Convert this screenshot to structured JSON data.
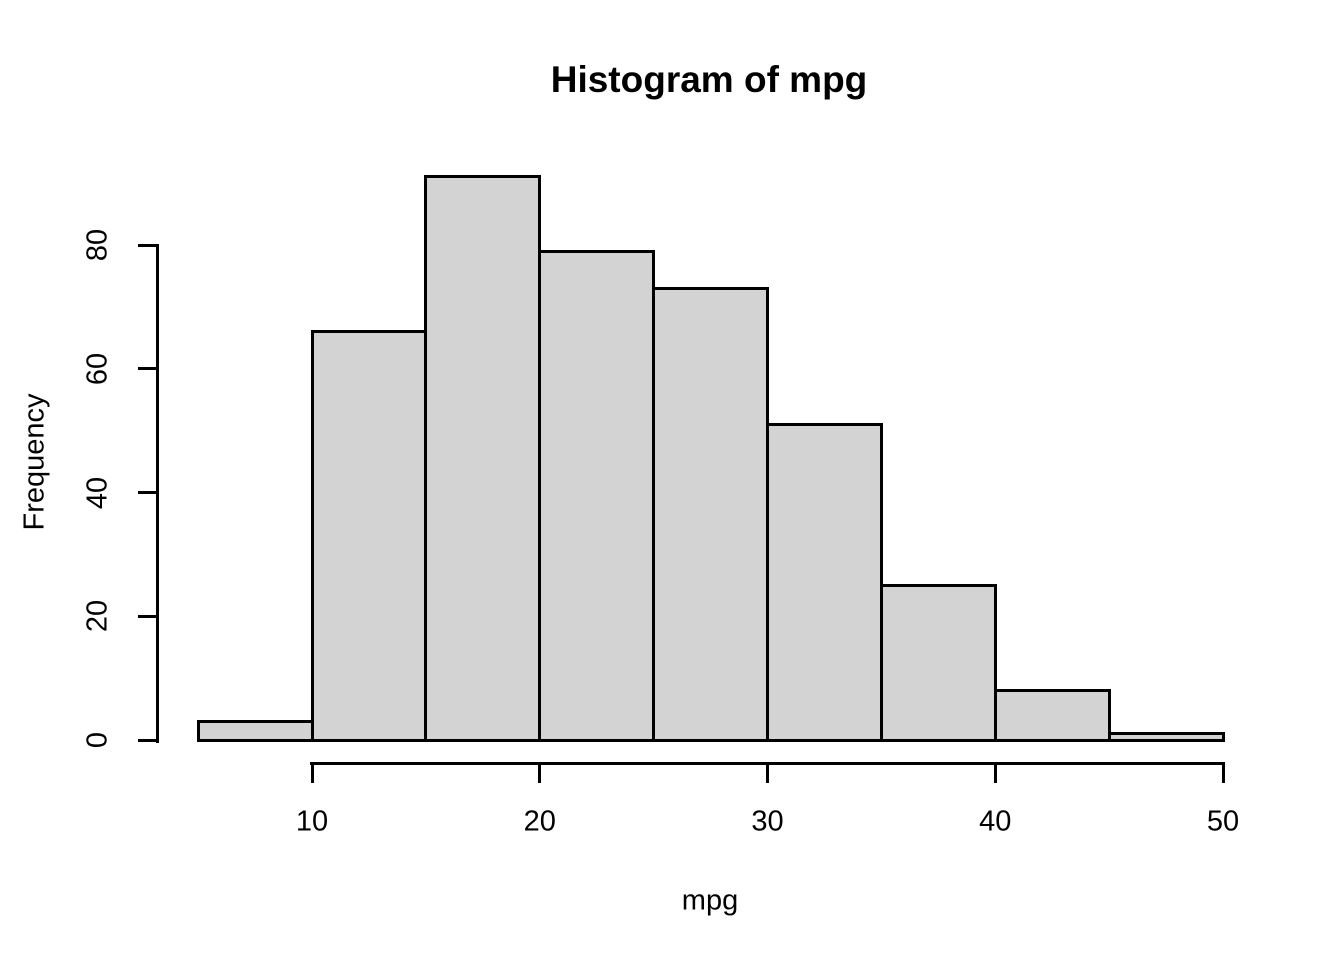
{
  "chart_data": {
    "type": "bar",
    "subtype": "histogram",
    "title": "Histogram of mpg",
    "xlabel": "mpg",
    "ylabel": "Frequency",
    "bin_edges": [
      5,
      10,
      15,
      20,
      25,
      30,
      35,
      40,
      45,
      50
    ],
    "counts": [
      3,
      66,
      91,
      79,
      73,
      51,
      25,
      8,
      1
    ],
    "xticks": [
      10,
      20,
      30,
      40,
      50
    ],
    "yticks": [
      0,
      20,
      40,
      60,
      80
    ],
    "xlim": [
      10,
      50
    ],
    "ylim": [
      0,
      80
    ],
    "grid": "off",
    "legend": "none",
    "colors": {
      "bar_fill": "#d3d3d3",
      "bar_border": "#000000",
      "axis": "#000000",
      "text": "#000000",
      "background": "#ffffff"
    }
  }
}
